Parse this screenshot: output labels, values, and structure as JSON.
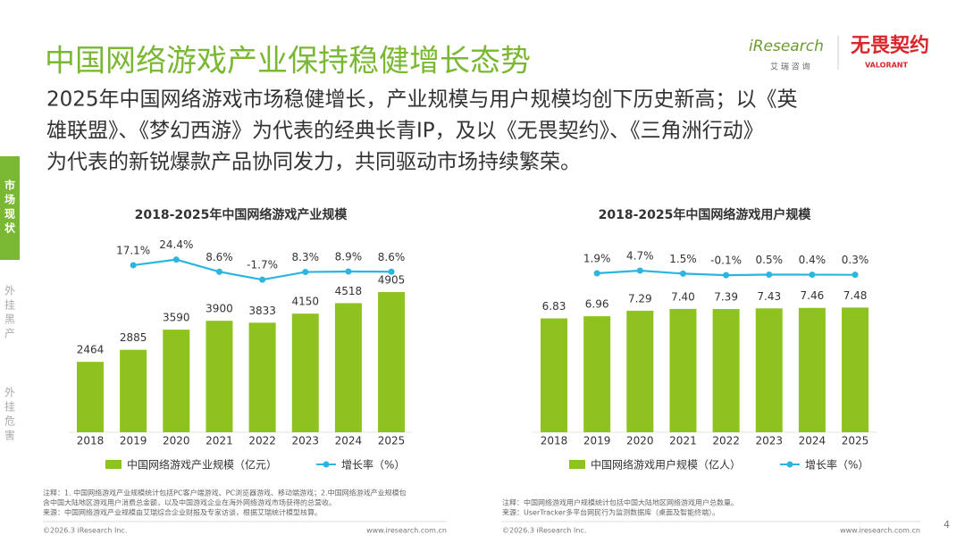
{
  "header": {
    "title": "中国网络游戏产业保持稳健增长态势",
    "logo": "iResearch",
    "logo_sub": "艾 瑞 咨 询",
    "game_logo": "无畏契约",
    "game_logo_sub": "VALORANT"
  },
  "paragraph": [
    "2025年中国网络游戏市场稳健增长，产业规模与用户规模均创下历史新高；以《英",
    "雄联盟》、《梦幻西游》为代表的经典长青IP，及以《无畏契约》、《三角洲行动》",
    "为代表的新锐爆款产品协同发力，共同驱动市场持续繁荣。"
  ],
  "side_nav": [
    "市场现状",
    "外挂黑产",
    "外挂危害"
  ],
  "chart_data": [
    {
      "type": "bar",
      "title": "2018-2025年中国网络游戏产业规模",
      "categories": [
        "2018",
        "2019",
        "2020",
        "2021",
        "2022",
        "2023",
        "2024",
        "2025"
      ],
      "ylim": [
        0,
        7000
      ],
      "y2lim": [
        -200,
        60
      ],
      "series": [
        {
          "name": "中国网络游戏产业规模（亿元）",
          "color": "#8dc21f",
          "values": [
            2464,
            2885,
            3590,
            3900,
            3833,
            4150,
            4518,
            4905
          ]
        },
        {
          "name": "增长率（%）",
          "type": "line",
          "axis": "y2",
          "color": "#2bb5e0",
          "values": [
            null,
            17.1,
            24.4,
            8.6,
            -1.7,
            8.3,
            8.9,
            8.6
          ],
          "value_labels": [
            null,
            "17.1%",
            "24.4%",
            "8.6%",
            "-1.7%",
            "8.3%",
            "8.9%",
            "8.6%"
          ]
        }
      ]
    },
    {
      "type": "bar",
      "title": "2018-2025年中国网络游戏用户规模",
      "categories": [
        "2018",
        "2019",
        "2020",
        "2021",
        "2022",
        "2023",
        "2024",
        "2025"
      ],
      "ylim": [
        0,
        12
      ],
      "y2lim": [
        -165,
        45
      ],
      "series": [
        {
          "name": "中国网络游戏用户规模（亿人）",
          "color": "#8dc21f",
          "values": [
            6.83,
            6.96,
            7.29,
            7.4,
            7.39,
            7.43,
            7.46,
            7.48
          ],
          "value_labels": [
            "6.83",
            "6.96",
            "7.29",
            "7.40",
            "7.39",
            "7.43",
            "7.46",
            "7.48"
          ]
        },
        {
          "name": "增长率（%）",
          "type": "line",
          "axis": "y2",
          "color": "#2bb5e0",
          "values": [
            null,
            1.9,
            4.7,
            1.5,
            -0.1,
            0.5,
            0.4,
            0.3
          ],
          "value_labels": [
            null,
            "1.9%",
            "4.7%",
            "1.5%",
            "-0.1%",
            "0.5%",
            "0.4%",
            "0.3%"
          ]
        }
      ]
    }
  ],
  "notes": [
    [
      "注释：1. 中国网络游戏产业规模统计包括PC客户端游戏、PC浏览器游戏、移动端游戏；2.中国网络游戏产业规模包",
      "含中国大陆地区游戏用户消费总金额，以及中国游戏企业在海外网络游戏市场获得的总营收。",
      "来源：中国网络游戏产业规模由艾瑞综合企业财报及专家访谈，根据艾瑞统计模型核算。"
    ],
    [
      "注释：中国网络游戏用户规模统计包括中国大陆地区网络游戏用户总数量。",
      "来源：UserTracker多平台网民行为监测数据库（桌面及智能终端）。"
    ]
  ],
  "footer": {
    "copyright": "©2026.3 iResearch Inc.",
    "url": "www.iresearch.com.cn",
    "page": 4
  }
}
